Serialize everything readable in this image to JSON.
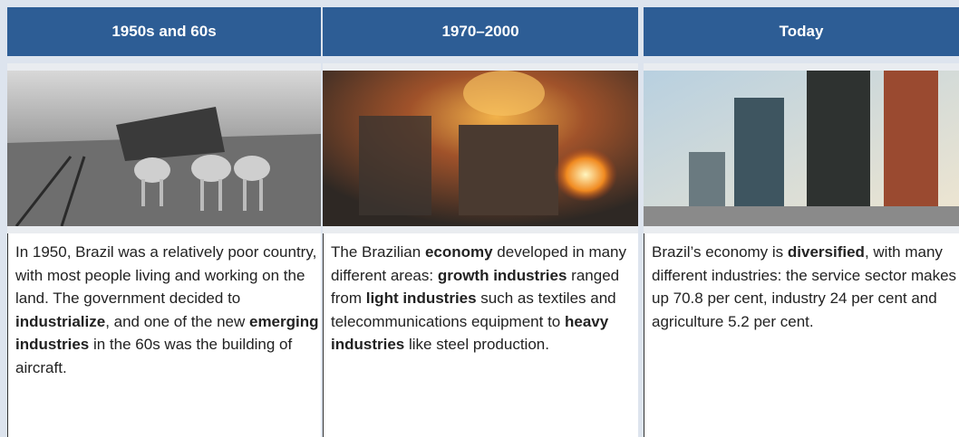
{
  "columns": [
    {
      "heading": "1950s and 60s",
      "runs": [
        {
          "text": "In 1950, Brazil was a relatively poor country, with most people living and working on the land. The government decided to ",
          "bold": false
        },
        {
          "text": "industrialize",
          "bold": true
        },
        {
          "text": ", and one of the new ",
          "bold": false
        },
        {
          "text": "emerging industries",
          "bold": true
        },
        {
          "text": " in the 60s was the building of aircraft.",
          "bold": false
        }
      ]
    },
    {
      "heading": "1970–2000",
      "runs": [
        {
          "text": "The Brazilian ",
          "bold": false
        },
        {
          "text": "economy",
          "bold": true
        },
        {
          "text": " developed in many different areas: ",
          "bold": false
        },
        {
          "text": "growth industries",
          "bold": true
        },
        {
          "text": " ranged from ",
          "bold": false
        },
        {
          "text": "light industries",
          "bold": true
        },
        {
          "text": " such as textiles and telecommunications equipment to ",
          "bold": false
        },
        {
          "text": "heavy industries",
          "bold": true
        },
        {
          "text": " like steel production.",
          "bold": false
        }
      ]
    },
    {
      "heading": "Today",
      "runs": [
        {
          "text": "Brazil’s economy is ",
          "bold": false
        },
        {
          "text": "diversified",
          "bold": true
        },
        {
          "text": ", with many different industries: the service sector makes up 70.8 per cent, industry 24 per cent and agriculture 5.2 per cent.",
          "bold": false
        }
      ]
    }
  ]
}
